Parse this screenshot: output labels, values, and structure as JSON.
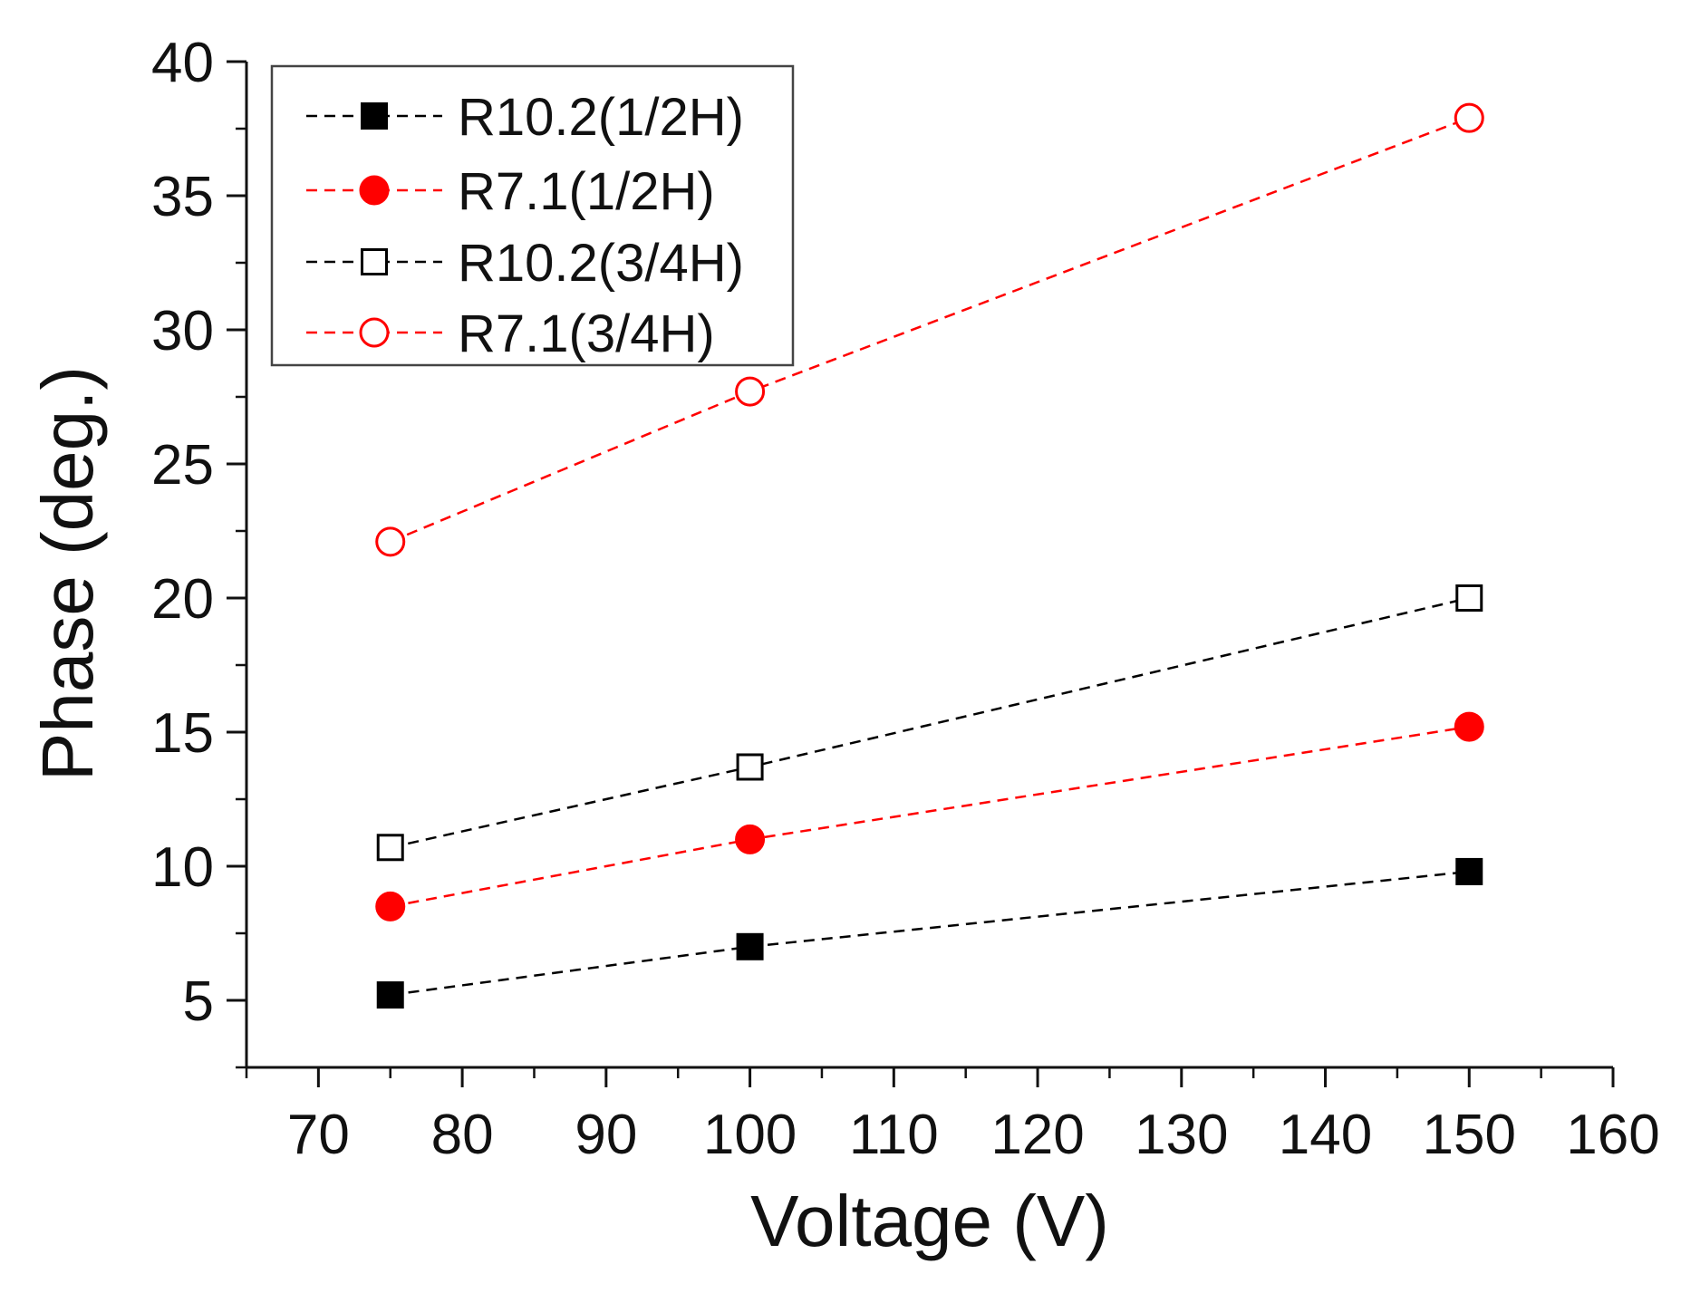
{
  "chart_data": {
    "type": "scatter",
    "title": "",
    "xlabel": "Voltage (V)",
    "ylabel": "Phase (deg.)",
    "xlim": [
      65,
      160
    ],
    "ylim": [
      2.5,
      40
    ],
    "x_ticks": [
      70,
      80,
      90,
      100,
      110,
      120,
      130,
      140,
      150,
      160
    ],
    "y_ticks": [
      5,
      10,
      15,
      20,
      25,
      30,
      35,
      40
    ],
    "x_tick_labels": [
      "70",
      "80",
      "90",
      "100",
      "110",
      "120",
      "130",
      "140",
      "150",
      "160"
    ],
    "y_tick_labels": [
      "5",
      "10",
      "15",
      "20",
      "25",
      "30",
      "35",
      "40"
    ],
    "grid": false,
    "legend_position": "top-left",
    "series": [
      {
        "name": "R10.2(1/2H)",
        "color": "#000000",
        "marker": "square",
        "filled": true,
        "x": [
          75,
          100,
          150
        ],
        "y": [
          5.2,
          7.0,
          9.8
        ]
      },
      {
        "name": "R7.1(1/2H)",
        "color": "#ff0000",
        "marker": "circle",
        "filled": true,
        "x": [
          75,
          100,
          150
        ],
        "y": [
          8.5,
          11.0,
          15.2
        ]
      },
      {
        "name": "R10.2(3/4H)",
        "color": "#000000",
        "marker": "square",
        "filled": false,
        "x": [
          75,
          100,
          150
        ],
        "y": [
          10.7,
          13.7,
          20.0
        ]
      },
      {
        "name": "R7.1(3/4H)",
        "color": "#ff0000",
        "marker": "circle",
        "filled": false,
        "x": [
          75,
          100,
          150
        ],
        "y": [
          22.1,
          27.7,
          37.9
        ]
      }
    ]
  }
}
